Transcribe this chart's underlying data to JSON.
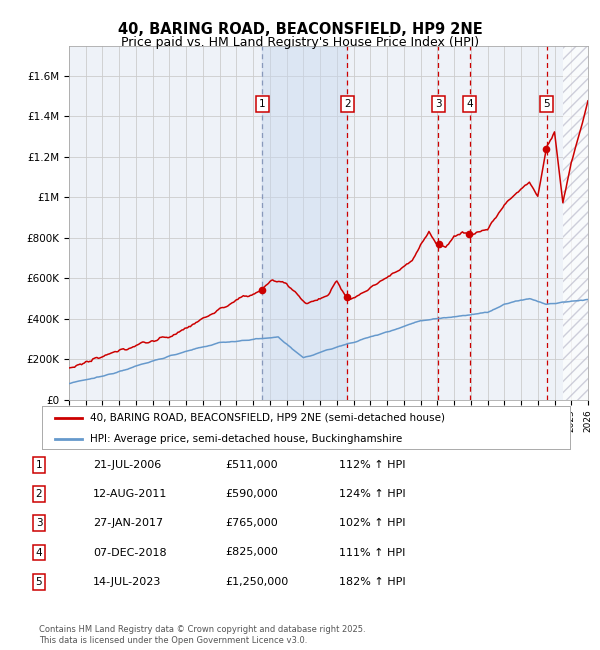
{
  "title": "40, BARING ROAD, BEACONSFIELD, HP9 2NE",
  "subtitle": "Price paid vs. HM Land Registry's House Price Index (HPI)",
  "title_fontsize": 10.5,
  "subtitle_fontsize": 9,
  "legend_line1": "40, BARING ROAD, BEACONSFIELD, HP9 2NE (semi-detached house)",
  "legend_line2": "HPI: Average price, semi-detached house, Buckinghamshire",
  "transactions": [
    {
      "num": 1,
      "date": "21-JUL-2006",
      "year": 2006.54,
      "price": 511000,
      "hpi_pct": "112% ↑ HPI"
    },
    {
      "num": 2,
      "date": "12-AUG-2011",
      "year": 2011.62,
      "price": 590000,
      "hpi_pct": "124% ↑ HPI"
    },
    {
      "num": 3,
      "date": "27-JAN-2017",
      "year": 2017.07,
      "price": 765000,
      "hpi_pct": "102% ↑ HPI"
    },
    {
      "num": 4,
      "date": "07-DEC-2018",
      "year": 2018.93,
      "price": 825000,
      "hpi_pct": "111% ↑ HPI"
    },
    {
      "num": 5,
      "date": "14-JUL-2023",
      "year": 2023.54,
      "price": 1250000,
      "hpi_pct": "182% ↑ HPI"
    }
  ],
  "red_line_color": "#cc0000",
  "blue_line_color": "#6699cc",
  "grid_color": "#cccccc",
  "bg_color": "#ffffff",
  "plot_bg_color": "#eef2f8",
  "hatch_color": "#bbbbcc",
  "vline_color_1": "#8899bb",
  "vline_color_red": "#cc0000",
  "xlim": [
    1995,
    2026
  ],
  "ylim": [
    0,
    1750000
  ],
  "yticks": [
    0,
    200000,
    400000,
    600000,
    800000,
    1000000,
    1200000,
    1400000,
    1600000
  ],
  "ytick_labels": [
    "£0",
    "£200K",
    "£400K",
    "£600K",
    "£800K",
    "£1M",
    "£1.2M",
    "£1.4M",
    "£1.6M"
  ],
  "footnote": "Contains HM Land Registry data © Crown copyright and database right 2025.\nThis data is licensed under the Open Government Licence v3.0."
}
